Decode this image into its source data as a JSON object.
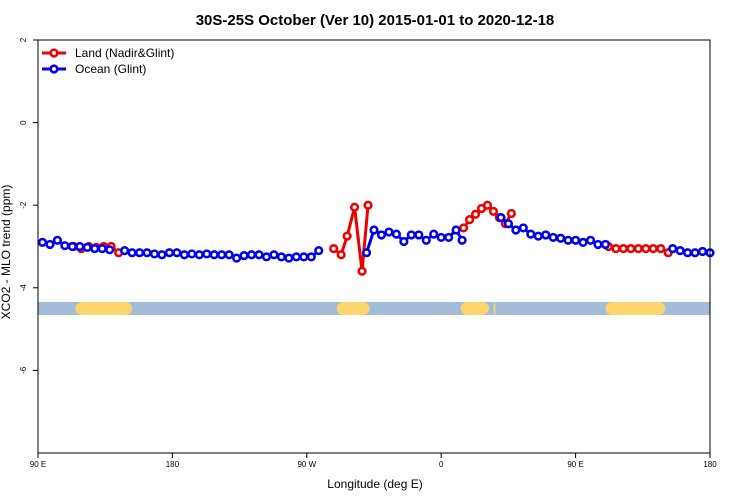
{
  "chart_data": {
    "type": "line",
    "title": "30S-25S October (Ver 10)   2015-01-01 to 2020-12-18",
    "xlabel": "Longitude (deg E)",
    "ylabel": "XCO2 - MLO trend (ppm)",
    "x_tick_labels": [
      "90 E",
      "180",
      "90 W",
      "0",
      "90 E",
      "180"
    ],
    "x_tick_values": [
      90,
      180,
      270,
      360,
      450,
      540
    ],
    "xlim": [
      90,
      540
    ],
    "y_tick_labels": [
      "2",
      "0",
      "-2",
      "-4",
      "-6"
    ],
    "y_tick_values": [
      2,
      0,
      -2,
      -4,
      -6
    ],
    "ylim": [
      -8,
      2
    ],
    "grid": false,
    "legend_position": "top-left",
    "legend": [
      {
        "label": "Land (Nadir&Glint)",
        "color": "#ee0000"
      },
      {
        "label": "Ocean (Glint)",
        "color": "#0000ee"
      }
    ],
    "surface_band": {
      "y": -4.5,
      "ocean_color": "#a3bcd9",
      "land_color": "#fcd56b",
      "land_ranges": [
        [
          115,
          153
        ],
        [
          290,
          312
        ],
        [
          373,
          392
        ],
        [
          395,
          396
        ],
        [
          470,
          510
        ]
      ]
    },
    "series": [
      {
        "name": "Land (Nadir&Glint)",
        "color": "#ee0000",
        "points": [
          [
            114,
            -3.0
          ],
          [
            119,
            -3.05
          ],
          [
            124,
            -3.0
          ],
          [
            129,
            -3.02
          ],
          [
            134,
            -3.0
          ],
          [
            139,
            -3.0
          ],
          [
            144,
            -3.15
          ],
          [
            288,
            -3.05
          ],
          [
            293,
            -3.2
          ],
          [
            297,
            -2.75
          ],
          [
            302,
            -2.05
          ],
          [
            307,
            -3.6
          ],
          [
            311,
            -2.0
          ],
          [
            375,
            -2.55
          ],
          [
            379,
            -2.35
          ],
          [
            383,
            -2.22
          ],
          [
            387,
            -2.08
          ],
          [
            391,
            -2.0
          ],
          [
            395,
            -2.15
          ],
          [
            399,
            -2.3
          ],
          [
            403,
            -2.45
          ],
          [
            407,
            -2.2
          ],
          [
            472,
            -3.0
          ],
          [
            477,
            -3.05
          ],
          [
            482,
            -3.05
          ],
          [
            487,
            -3.05
          ],
          [
            492,
            -3.05
          ],
          [
            497,
            -3.05
          ],
          [
            502,
            -3.05
          ],
          [
            507,
            -3.05
          ],
          [
            512,
            -3.15
          ]
        ]
      },
      {
        "name": "Ocean (Glint)",
        "color": "#0000ee",
        "points": [
          [
            93,
            -2.9
          ],
          [
            98,
            -2.95
          ],
          [
            103,
            -2.85
          ],
          [
            108,
            -2.98
          ],
          [
            113,
            -3.0
          ],
          [
            118,
            -3.0
          ],
          [
            123,
            -3.02
          ],
          [
            128,
            -3.05
          ],
          [
            133,
            -3.05
          ],
          [
            138,
            -3.08
          ],
          [
            148,
            -3.1
          ],
          [
            153,
            -3.15
          ],
          [
            158,
            -3.15
          ],
          [
            163,
            -3.15
          ],
          [
            168,
            -3.18
          ],
          [
            173,
            -3.2
          ],
          [
            178,
            -3.15
          ],
          [
            183,
            -3.15
          ],
          [
            188,
            -3.2
          ],
          [
            193,
            -3.18
          ],
          [
            198,
            -3.2
          ],
          [
            203,
            -3.18
          ],
          [
            208,
            -3.2
          ],
          [
            213,
            -3.2
          ],
          [
            218,
            -3.2
          ],
          [
            223,
            -3.28
          ],
          [
            228,
            -3.22
          ],
          [
            233,
            -3.2
          ],
          [
            238,
            -3.2
          ],
          [
            243,
            -3.25
          ],
          [
            248,
            -3.2
          ],
          [
            253,
            -3.25
          ],
          [
            258,
            -3.28
          ],
          [
            263,
            -3.25
          ],
          [
            268,
            -3.25
          ],
          [
            273,
            -3.25
          ],
          [
            278,
            -3.1
          ],
          [
            310,
            -3.15
          ],
          [
            315,
            -2.6
          ],
          [
            320,
            -2.72
          ],
          [
            325,
            -2.65
          ],
          [
            330,
            -2.7
          ],
          [
            335,
            -2.88
          ],
          [
            340,
            -2.72
          ],
          [
            345,
            -2.72
          ],
          [
            350,
            -2.85
          ],
          [
            355,
            -2.7
          ],
          [
            360,
            -2.78
          ],
          [
            365,
            -2.78
          ],
          [
            370,
            -2.6
          ],
          [
            374,
            -2.85
          ],
          [
            400,
            -2.3
          ],
          [
            405,
            -2.45
          ],
          [
            410,
            -2.6
          ],
          [
            415,
            -2.55
          ],
          [
            420,
            -2.7
          ],
          [
            425,
            -2.75
          ],
          [
            430,
            -2.72
          ],
          [
            435,
            -2.78
          ],
          [
            440,
            -2.8
          ],
          [
            445,
            -2.85
          ],
          [
            450,
            -2.85
          ],
          [
            455,
            -2.9
          ],
          [
            460,
            -2.85
          ],
          [
            465,
            -2.95
          ],
          [
            470,
            -2.95
          ],
          [
            515,
            -3.05
          ],
          [
            520,
            -3.1
          ],
          [
            525,
            -3.15
          ],
          [
            530,
            -3.15
          ],
          [
            535,
            -3.12
          ],
          [
            540,
            -3.15
          ]
        ]
      }
    ]
  }
}
